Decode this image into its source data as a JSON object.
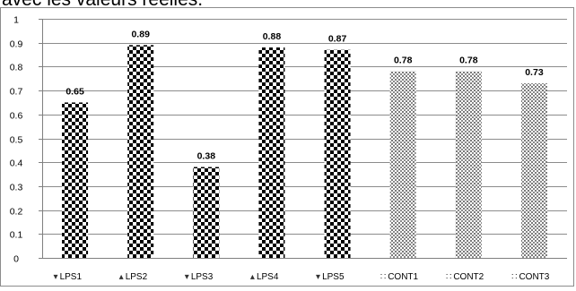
{
  "caption": "avec les valeurs réelles.",
  "chart_data": {
    "type": "bar",
    "categories": [
      "LPS1",
      "LPS2",
      "LPS3",
      "LPS4",
      "LPS5",
      "CONT1",
      "CONT2",
      "CONT3"
    ],
    "values": [
      0.65,
      0.89,
      0.38,
      0.88,
      0.87,
      0.78,
      0.78,
      0.73
    ],
    "data_labels": [
      "0.65",
      "0.89",
      "0.38",
      "0.88",
      "0.87",
      "0.78",
      "0.78",
      "0.73"
    ],
    "ylim": [
      0,
      1
    ],
    "yticks": [
      "0",
      "0.1",
      "0.2",
      "0.3",
      "0.4",
      "0.5",
      "0.6",
      "0.7",
      "0.8",
      "0.9",
      "1"
    ],
    "title": "",
    "xlabel": "",
    "ylabel": "",
    "grid": true,
    "legend_position": "bottom",
    "patterns": [
      "checker",
      "checker",
      "checker",
      "checker",
      "checker",
      "fine-dots",
      "fine-dots",
      "fine-dots"
    ],
    "legend_marker_glyphs": [
      "▾",
      "▴",
      "▾",
      "▴",
      "▾",
      "∷",
      "∷",
      "∷"
    ],
    "colors": {
      "bar_fill_dark": "#000000",
      "bar_fill_light": "#ffffff",
      "bar_dots": "#7a7a7a",
      "gridline": "#8c8c8c",
      "axis": "#7f7f7f",
      "border": "#8c8c8c"
    }
  }
}
